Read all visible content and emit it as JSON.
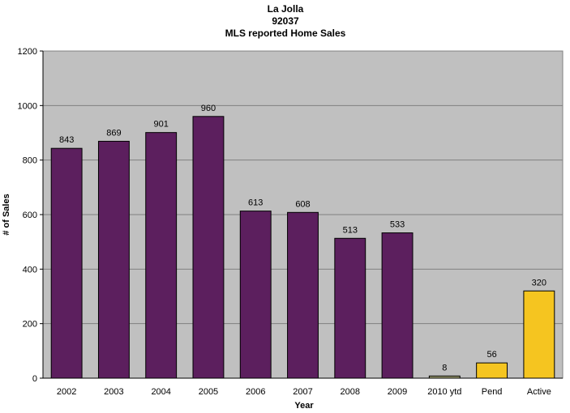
{
  "chart_data": {
    "type": "bar",
    "title": [
      "La Jolla",
      "92037",
      "MLS reported Home Sales"
    ],
    "xlabel": "Year",
    "ylabel": "# of Sales",
    "categories": [
      "2002",
      "2003",
      "2004",
      "2005",
      "2006",
      "2007",
      "2008",
      "2009",
      "2010 ytd",
      "Pend",
      "Active"
    ],
    "values": [
      843,
      869,
      901,
      960,
      613,
      608,
      513,
      533,
      8,
      56,
      320
    ],
    "bar_colors": [
      "#5c1f5e",
      "#5c1f5e",
      "#5c1f5e",
      "#5c1f5e",
      "#5c1f5e",
      "#5c1f5e",
      "#5c1f5e",
      "#5c1f5e",
      "#9a9a6e",
      "#f5c520",
      "#f5c520"
    ],
    "ylim": [
      0,
      1200
    ],
    "yticks": [
      0,
      200,
      400,
      600,
      800,
      1000,
      1200
    ],
    "grid": true,
    "legend": "none",
    "plot_background": "#c0c0c0"
  }
}
